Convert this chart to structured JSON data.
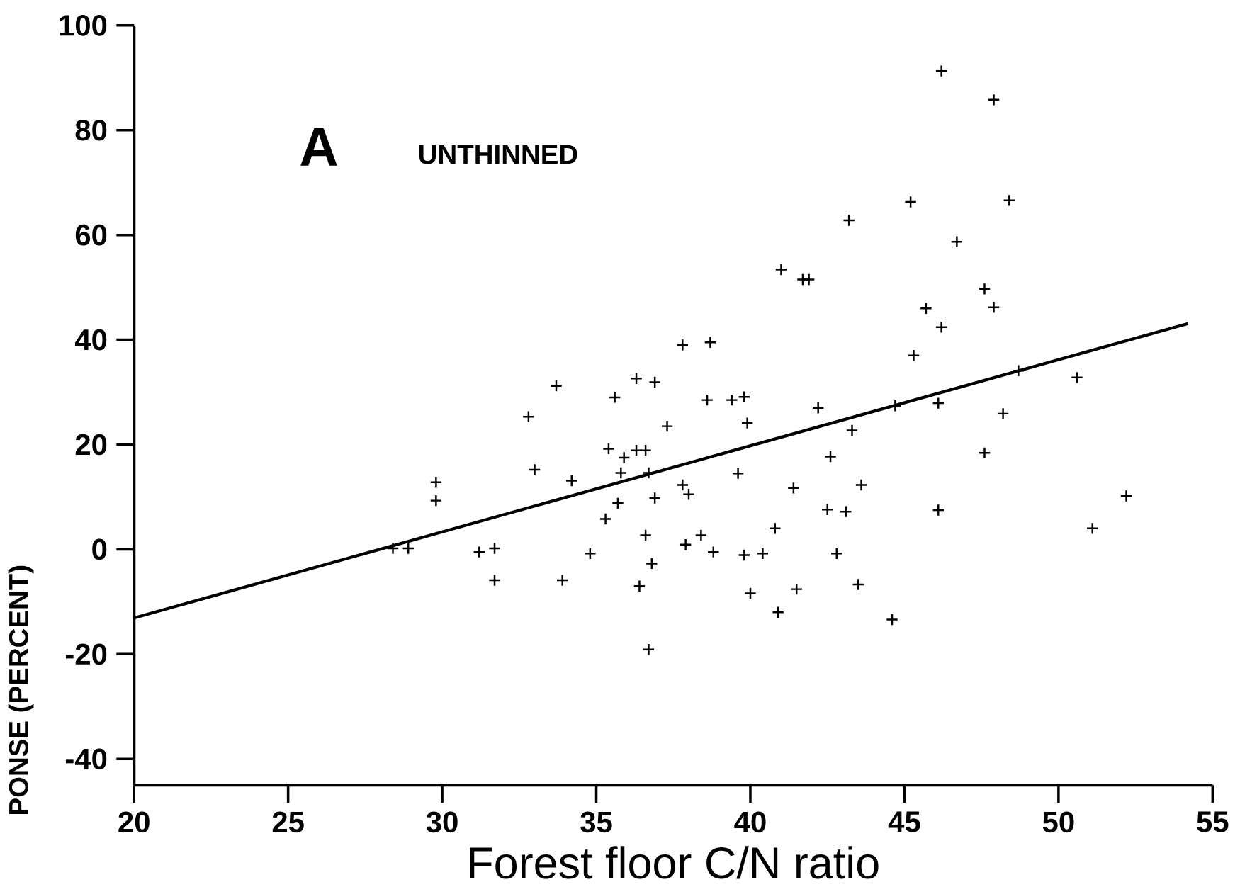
{
  "chart_data": {
    "type": "scatter",
    "xlabel": "Forest floor C/N ratio",
    "ylabel": "PONSE (PERCENT)",
    "annotations": [
      "A",
      "UNTHINNED"
    ],
    "xlim": [
      20,
      55
    ],
    "ylim": [
      -45,
      100
    ],
    "xticks": [
      20,
      25,
      30,
      35,
      40,
      45,
      50,
      55
    ],
    "yticks": [
      -40,
      -20,
      0,
      20,
      40,
      60,
      80,
      100
    ],
    "marker": "cross",
    "series": [
      {
        "color": "#000000",
        "x": [
          28.4,
          28.9,
          29.8,
          29.8,
          31.2,
          31.7,
          31.7,
          32.8,
          33.0,
          33.7,
          33.9,
          34.2,
          34.8,
          35.3,
          35.4,
          35.6,
          35.7,
          35.8,
          35.9,
          36.3,
          36.3,
          36.4,
          36.6,
          36.6,
          36.7,
          36.7,
          36.8,
          36.9,
          36.9,
          37.3,
          37.8,
          37.8,
          37.9,
          38.0,
          38.4,
          38.6,
          38.7,
          38.8,
          39.4,
          39.6,
          39.8,
          39.8,
          39.9,
          40.0,
          40.4,
          40.8,
          40.9,
          41.0,
          41.4,
          41.5,
          41.7,
          41.9,
          42.2,
          42.5,
          42.6,
          42.8,
          43.1,
          43.2,
          43.3,
          43.5,
          43.6,
          44.6,
          44.7,
          45.2,
          45.3,
          45.7,
          46.1,
          46.1,
          46.2,
          46.2,
          46.7,
          47.6,
          47.6,
          47.9,
          47.9,
          48.2,
          48.4,
          48.7,
          50.6,
          51.1,
          52.2
        ],
        "values": [
          0.2,
          0.2,
          12.8,
          9.3,
          -0.5,
          0.2,
          -5.9,
          25.3,
          15.2,
          31.2,
          -5.9,
          13.1,
          -0.8,
          5.8,
          19.2,
          29.0,
          8.8,
          14.6,
          17.5,
          32.6,
          18.9,
          -7.0,
          18.9,
          2.7,
          -19.1,
          14.6,
          -2.7,
          9.8,
          31.9,
          23.5,
          39.0,
          12.3,
          0.9,
          10.5,
          2.7,
          28.5,
          39.5,
          -0.5,
          28.5,
          14.5,
          -1.1,
          29.1,
          24.1,
          -8.4,
          -0.8,
          4.0,
          -12.0,
          53.4,
          11.7,
          -7.6,
          51.5,
          51.5,
          27.0,
          7.6,
          17.7,
          -0.8,
          7.2,
          62.8,
          22.7,
          -6.7,
          12.3,
          -13.4,
          27.4,
          66.3,
          37.0,
          46.0,
          7.5,
          27.9,
          91.3,
          42.4,
          58.7,
          18.4,
          49.7,
          46.2,
          85.8,
          25.9,
          66.6,
          34.1,
          32.8,
          4.0,
          10.2
        ]
      },
      {
        "type": "line",
        "marker": "none",
        "color": "#000000",
        "x": [
          20,
          54.2
        ],
        "values": [
          -13.1,
          43.1
        ]
      }
    ]
  }
}
